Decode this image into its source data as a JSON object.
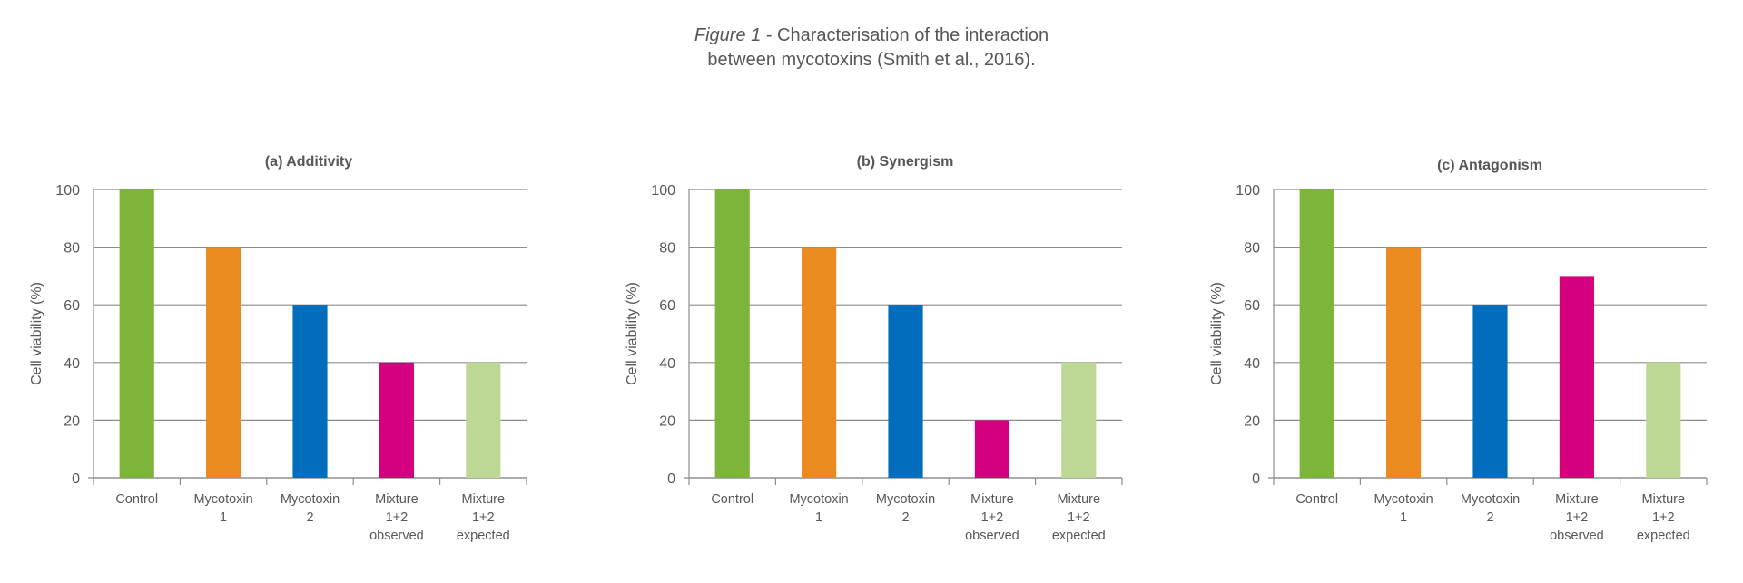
{
  "caption": {
    "figure_label": "Figure 1",
    "separator": " - ",
    "line1": "Characterisation of the interaction",
    "line2": "between mycotoxins (Smith et al., 2016)."
  },
  "colors": {
    "control": "#7db43a",
    "mycotoxin1": "#ea8b1f",
    "mycotoxin2": "#006ebc",
    "mixture_observed": "#d5007f",
    "mixture_expected": "#bdd795",
    "gridline": "#8c8c8c",
    "text": "#575757"
  },
  "chart_data": [
    {
      "type": "bar",
      "title": "(a) Additivity",
      "ylabel": "Cell viability (%)",
      "xlabel": "",
      "ylim": [
        0,
        100
      ],
      "yticks": [
        0,
        20,
        40,
        60,
        80,
        100
      ],
      "grid": true,
      "categories": [
        [
          "Control"
        ],
        [
          "Mycotoxin",
          "1"
        ],
        [
          "Mycotoxin",
          "2"
        ],
        [
          "Mixture",
          "1+2",
          "observed"
        ],
        [
          "Mixture",
          "1+2",
          "expected"
        ]
      ],
      "values": [
        100,
        80,
        60,
        40,
        40
      ]
    },
    {
      "type": "bar",
      "title": "(b) Synergism",
      "ylabel": "Cell viability (%)",
      "xlabel": "",
      "ylim": [
        0,
        100
      ],
      "yticks": [
        0,
        20,
        40,
        60,
        80,
        100
      ],
      "grid": true,
      "categories": [
        [
          "Control"
        ],
        [
          "Mycotoxin",
          "1"
        ],
        [
          "Mycotoxin",
          "2"
        ],
        [
          "Mixture",
          "1+2",
          "observed"
        ],
        [
          "Mixture",
          "1+2",
          "expected"
        ]
      ],
      "values": [
        100,
        80,
        60,
        20,
        40
      ]
    },
    {
      "type": "bar",
      "title": "(c) Antagonism",
      "ylabel": "Cell viability (%)",
      "xlabel": "",
      "ylim": [
        0,
        100
      ],
      "yticks": [
        0,
        20,
        40,
        60,
        80,
        100
      ],
      "grid": true,
      "categories": [
        [
          "Control"
        ],
        [
          "Mycotoxin",
          "1"
        ],
        [
          "Mycotoxin",
          "2"
        ],
        [
          "Mixture",
          "1+2",
          "observed"
        ],
        [
          "Mixture",
          "1+2",
          "expected"
        ]
      ],
      "values": [
        100,
        80,
        60,
        70,
        40
      ]
    }
  ]
}
